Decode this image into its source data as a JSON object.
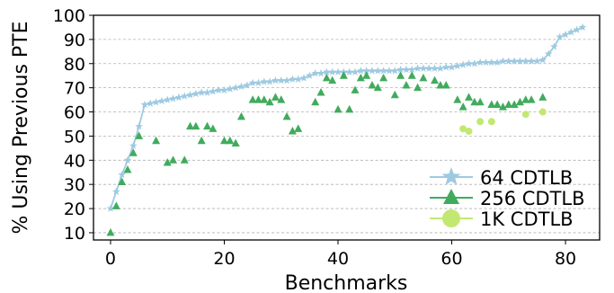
{
  "chart_data": {
    "type": "scatter",
    "xlabel": "Benchmarks",
    "ylabel": "% Using Previous PTE",
    "xlim": [
      -3,
      86
    ],
    "ylim": [
      7,
      100
    ],
    "xticks": [
      0,
      20,
      40,
      60,
      80
    ],
    "yticks": [
      10,
      20,
      30,
      40,
      50,
      60,
      70,
      80,
      90,
      100
    ],
    "grid": "horizontal-dashed",
    "legend": "bottom-right",
    "series": [
      {
        "name": "64 CDTLB",
        "color": "#9ecae1",
        "marker": "star",
        "line": true,
        "points": [
          [
            0,
            20
          ],
          [
            1,
            27
          ],
          [
            2,
            34
          ],
          [
            3,
            40
          ],
          [
            4,
            46
          ],
          [
            5,
            54
          ],
          [
            6,
            63
          ],
          [
            7,
            63.5
          ],
          [
            8,
            64
          ],
          [
            9,
            64.5
          ],
          [
            10,
            65
          ],
          [
            11,
            65.5
          ],
          [
            12,
            66
          ],
          [
            13,
            66.5
          ],
          [
            14,
            67
          ],
          [
            15,
            67.5
          ],
          [
            16,
            68
          ],
          [
            17,
            68
          ],
          [
            18,
            68.5
          ],
          [
            19,
            69
          ],
          [
            20,
            69
          ],
          [
            21,
            69.5
          ],
          [
            22,
            70
          ],
          [
            23,
            70.5
          ],
          [
            24,
            71
          ],
          [
            25,
            72
          ],
          [
            26,
            72
          ],
          [
            27,
            72.5
          ],
          [
            28,
            72.5
          ],
          [
            29,
            73
          ],
          [
            30,
            73
          ],
          [
            31,
            73
          ],
          [
            32,
            73.5
          ],
          [
            33,
            73.5
          ],
          [
            34,
            74
          ],
          [
            35,
            75
          ],
          [
            36,
            76
          ],
          [
            37,
            76
          ],
          [
            38,
            76.5
          ],
          [
            39,
            76.5
          ],
          [
            40,
            76.5
          ],
          [
            41,
            76.5
          ],
          [
            42,
            76.5
          ],
          [
            43,
            76.5
          ],
          [
            44,
            77
          ],
          [
            45,
            77
          ],
          [
            46,
            77
          ],
          [
            47,
            77
          ],
          [
            48,
            77
          ],
          [
            49,
            77
          ],
          [
            50,
            77
          ],
          [
            51,
            77.5
          ],
          [
            52,
            77.5
          ],
          [
            53,
            77.5
          ],
          [
            54,
            78
          ],
          [
            55,
            78
          ],
          [
            56,
            78
          ],
          [
            57,
            78
          ],
          [
            58,
            78
          ],
          [
            59,
            78.5
          ],
          [
            60,
            78.5
          ],
          [
            61,
            79
          ],
          [
            62,
            79.5
          ],
          [
            63,
            80
          ],
          [
            64,
            80
          ],
          [
            65,
            80.5
          ],
          [
            66,
            80.5
          ],
          [
            67,
            80.5
          ],
          [
            68,
            80.5
          ],
          [
            69,
            81
          ],
          [
            70,
            81
          ],
          [
            71,
            81
          ],
          [
            72,
            81
          ],
          [
            73,
            81
          ],
          [
            74,
            81
          ],
          [
            75,
            81
          ],
          [
            76,
            81.5
          ],
          [
            77,
            84
          ],
          [
            78,
            87
          ],
          [
            79,
            91
          ],
          [
            80,
            92
          ],
          [
            81,
            93
          ],
          [
            82,
            94
          ],
          [
            83,
            95
          ]
        ]
      },
      {
        "name": "256 CDTLB",
        "color": "#41ab5d",
        "marker": "triangle",
        "line": false,
        "points": [
          [
            0,
            10
          ],
          [
            1,
            21
          ],
          [
            2,
            31
          ],
          [
            3,
            36
          ],
          [
            4,
            43
          ],
          [
            5,
            50
          ],
          [
            8,
            48
          ],
          [
            10,
            39
          ],
          [
            11,
            40
          ],
          [
            13,
            40
          ],
          [
            14,
            54
          ],
          [
            15,
            54
          ],
          [
            16,
            48
          ],
          [
            17,
            54
          ],
          [
            18,
            53
          ],
          [
            20,
            48
          ],
          [
            21,
            48
          ],
          [
            22,
            47
          ],
          [
            23,
            58
          ],
          [
            25,
            65
          ],
          [
            26,
            65
          ],
          [
            27,
            65
          ],
          [
            28,
            64
          ],
          [
            29,
            66
          ],
          [
            30,
            65
          ],
          [
            31,
            58
          ],
          [
            32,
            52
          ],
          [
            33,
            53
          ],
          [
            36,
            64
          ],
          [
            37,
            68
          ],
          [
            38,
            74
          ],
          [
            39,
            73
          ],
          [
            40,
            61
          ],
          [
            41,
            75
          ],
          [
            42,
            61
          ],
          [
            43,
            69
          ],
          [
            44,
            74
          ],
          [
            45,
            75
          ],
          [
            46,
            71
          ],
          [
            47,
            70
          ],
          [
            48,
            74
          ],
          [
            50,
            67
          ],
          [
            51,
            75
          ],
          [
            52,
            71
          ],
          [
            53,
            75
          ],
          [
            54,
            70
          ],
          [
            55,
            74
          ],
          [
            57,
            73
          ],
          [
            58,
            71
          ],
          [
            59,
            71
          ],
          [
            61,
            65
          ],
          [
            62,
            62
          ],
          [
            63,
            66
          ],
          [
            64,
            64
          ],
          [
            65,
            64
          ],
          [
            67,
            63
          ],
          [
            68,
            63
          ],
          [
            69,
            62
          ],
          [
            70,
            63
          ],
          [
            71,
            63
          ],
          [
            72,
            64
          ],
          [
            73,
            65
          ],
          [
            74,
            65
          ],
          [
            76,
            66
          ]
        ]
      },
      {
        "name": "1K CDTLB",
        "color": "#c2e872",
        "marker": "circle",
        "line": false,
        "points": [
          [
            62,
            53
          ],
          [
            63,
            52
          ],
          [
            65,
            56
          ],
          [
            67,
            56
          ],
          [
            73,
            59
          ],
          [
            76,
            60
          ]
        ]
      }
    ]
  }
}
